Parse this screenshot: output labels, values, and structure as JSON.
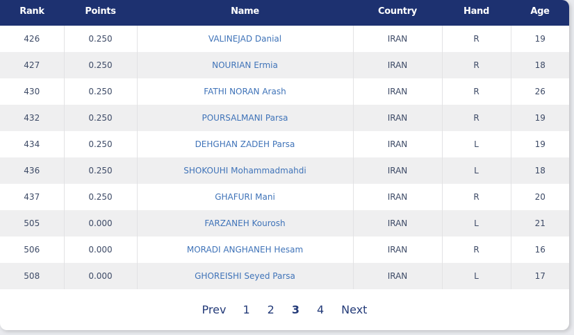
{
  "table": {
    "headers": {
      "rank": "Rank",
      "points": "Points",
      "name": "Name",
      "country": "Country",
      "hand": "Hand",
      "age": "Age"
    },
    "rows": [
      {
        "rank": "426",
        "points": "0.250",
        "name": "VALINEJAD Danial",
        "country": "IRAN",
        "hand": "R",
        "age": "19"
      },
      {
        "rank": "427",
        "points": "0.250",
        "name": "NOURIAN Ermia",
        "country": "IRAN",
        "hand": "R",
        "age": "18"
      },
      {
        "rank": "430",
        "points": "0.250",
        "name": "FATHI NORAN Arash",
        "country": "IRAN",
        "hand": "R",
        "age": "26"
      },
      {
        "rank": "432",
        "points": "0.250",
        "name": "POURSALMANI Parsa",
        "country": "IRAN",
        "hand": "R",
        "age": "19"
      },
      {
        "rank": "434",
        "points": "0.250",
        "name": "DEHGHAN ZADEH Parsa",
        "country": "IRAN",
        "hand": "L",
        "age": "19"
      },
      {
        "rank": "436",
        "points": "0.250",
        "name": "SHOKOUHI Mohammadmahdi",
        "country": "IRAN",
        "hand": "L",
        "age": "18"
      },
      {
        "rank": "437",
        "points": "0.250",
        "name": "GHAFURI Mani",
        "country": "IRAN",
        "hand": "R",
        "age": "20"
      },
      {
        "rank": "505",
        "points": "0.000",
        "name": "FARZANEH Kourosh",
        "country": "IRAN",
        "hand": "L",
        "age": "21"
      },
      {
        "rank": "506",
        "points": "0.000",
        "name": "MORADI ANGHANEH Hesam",
        "country": "IRAN",
        "hand": "R",
        "age": "16"
      },
      {
        "rank": "508",
        "points": "0.000",
        "name": "GHOREISHI Seyed Parsa",
        "country": "IRAN",
        "hand": "L",
        "age": "17"
      }
    ]
  },
  "pagination": {
    "prev_label": "Prev",
    "pages": [
      "1",
      "2",
      "3",
      "4"
    ],
    "current": "3",
    "next_label": "Next"
  },
  "colors": {
    "header_bg": "#1d3170",
    "name_link": "#3f73b8",
    "pager_text": "#233a78"
  }
}
